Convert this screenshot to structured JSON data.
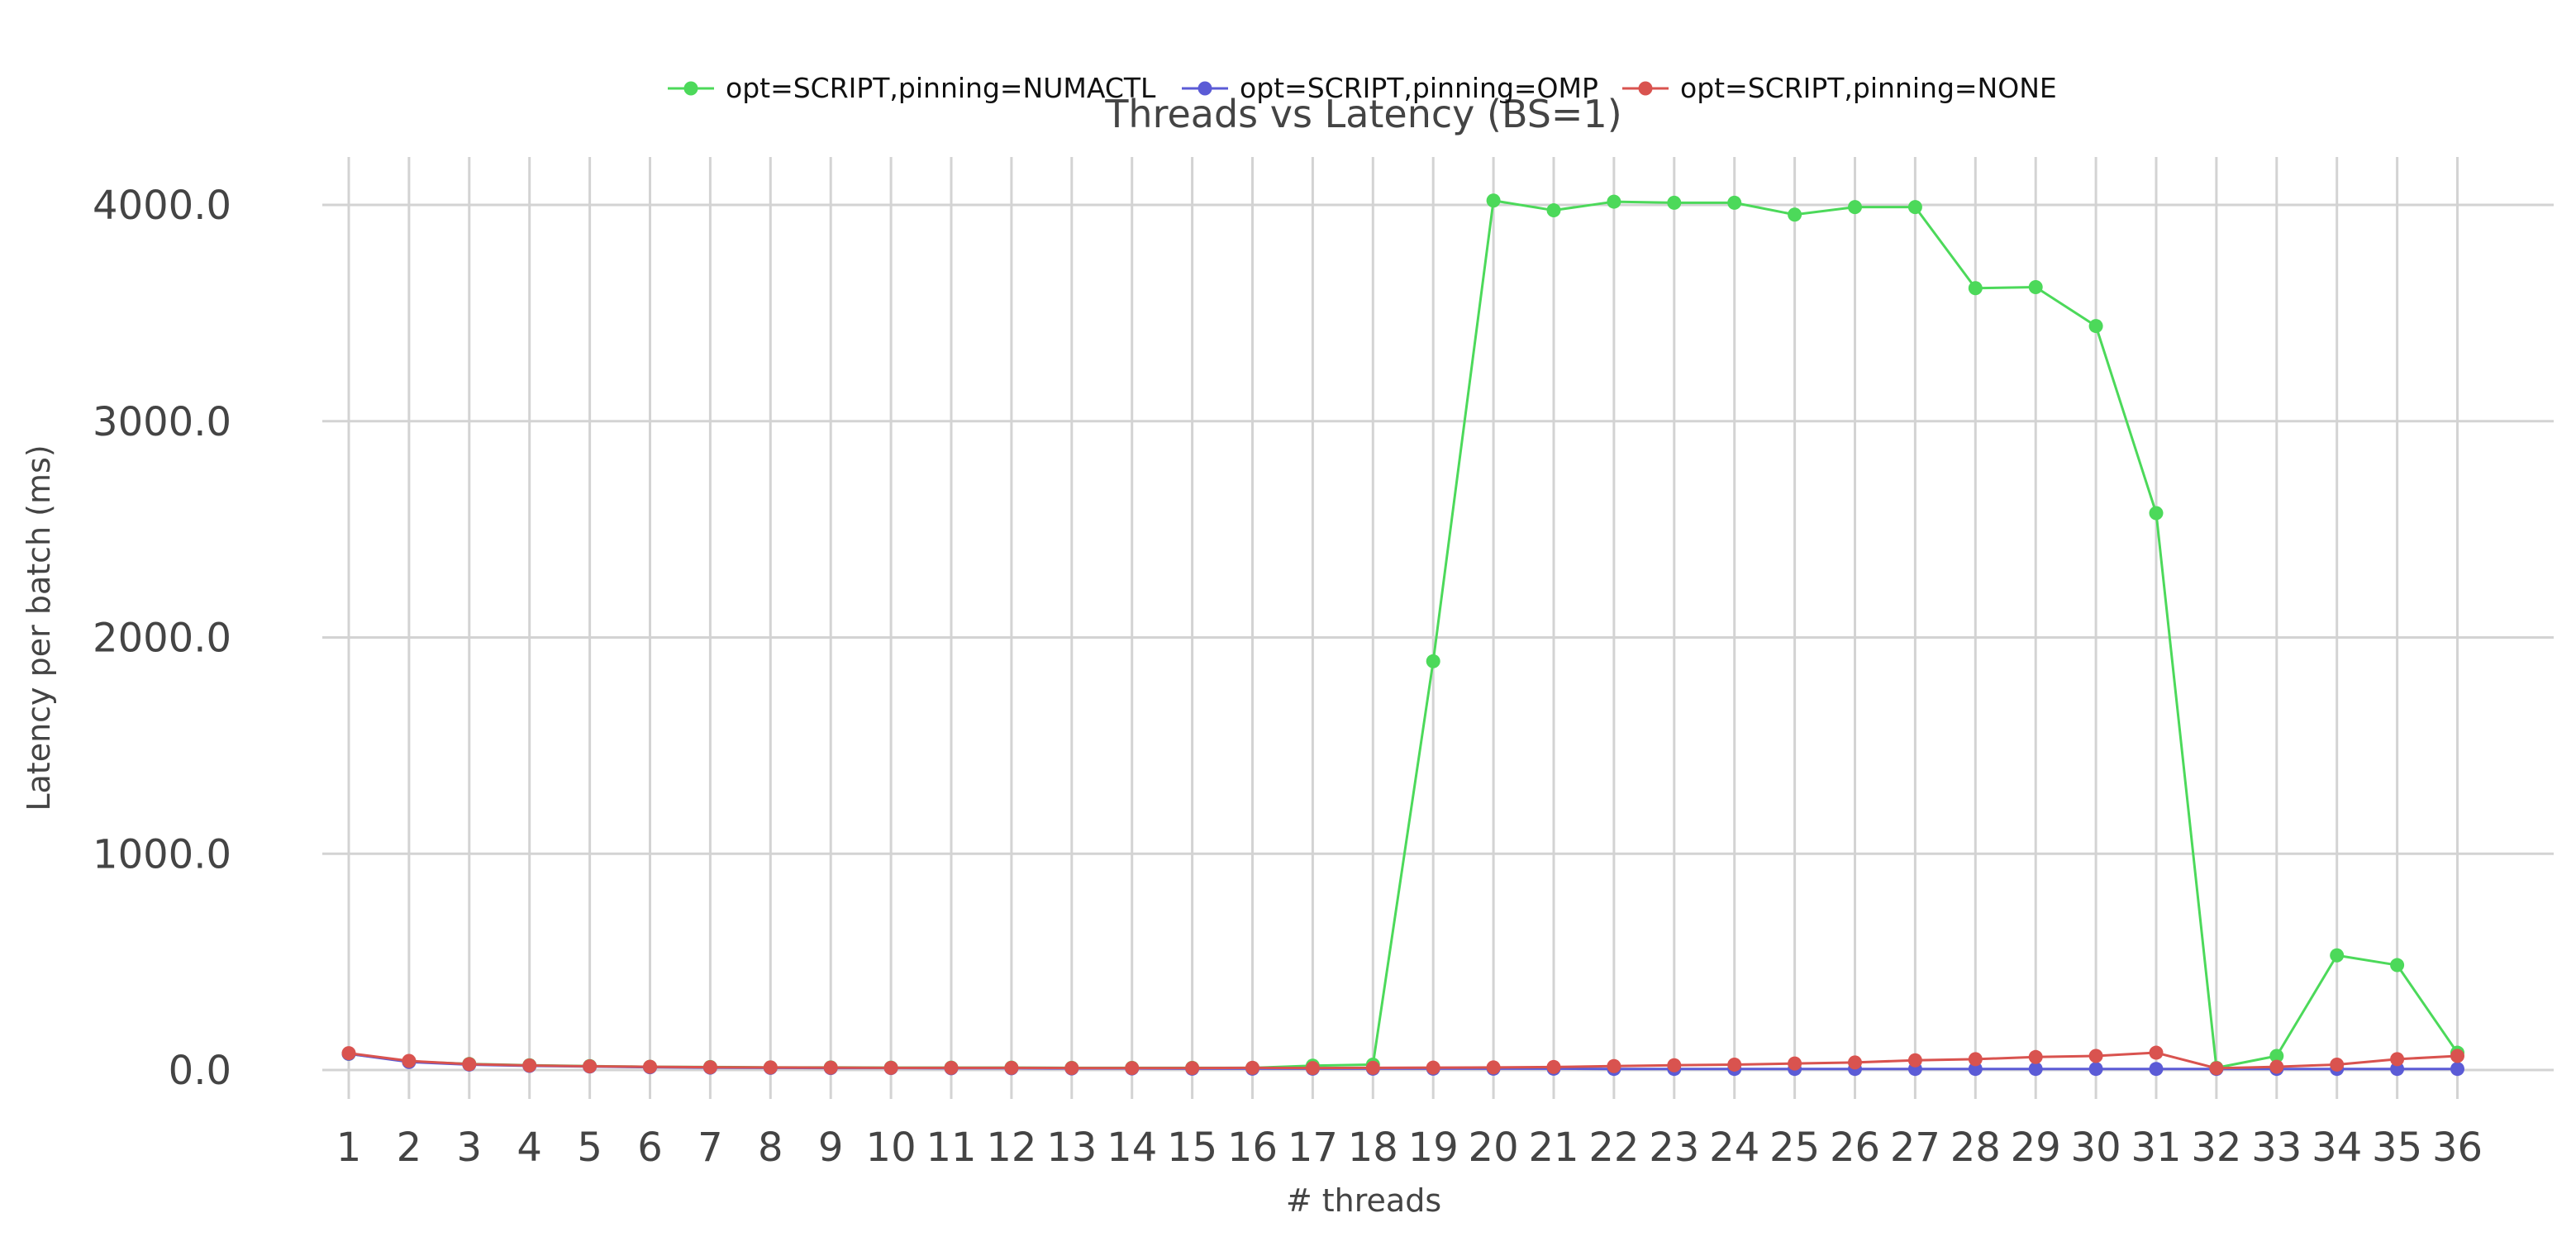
{
  "chart_data": {
    "type": "line",
    "title": "Threads vs Latency (BS=1)",
    "xlabel": "# threads",
    "ylabel": "Latency per batch (ms)",
    "x": [
      1,
      2,
      3,
      4,
      5,
      6,
      7,
      8,
      9,
      10,
      11,
      12,
      13,
      14,
      15,
      16,
      17,
      18,
      19,
      20,
      21,
      22,
      23,
      24,
      25,
      26,
      27,
      28,
      29,
      30,
      31,
      32,
      33,
      34,
      35,
      36
    ],
    "y_ticks": [
      "0.0",
      "1000.0",
      "2000.0",
      "3000.0",
      "4000.0"
    ],
    "ylim": [
      -70,
      4230
    ],
    "grid": true,
    "legend_position": "top-center",
    "series": [
      {
        "name": "opt=SCRIPT,pinning=NUMACTL",
        "color": "#4cd95a",
        "values": [
          75,
          40,
          28,
          22,
          18,
          15,
          14,
          12,
          12,
          11,
          11,
          11,
          10,
          10,
          10,
          10,
          20,
          25,
          1890,
          4020,
          3975,
          4015,
          4010,
          4010,
          3955,
          3990,
          3990,
          3615,
          3620,
          3440,
          2575,
          10,
          65,
          530,
          485,
          80
        ]
      },
      {
        "name": "opt=SCRIPT,pinning=OMP",
        "color": "#5b5bd6",
        "values": [
          75,
          37,
          25,
          19,
          16,
          13,
          11,
          10,
          9,
          9,
          8,
          8,
          7,
          7,
          6,
          6,
          6,
          6,
          6,
          6,
          6,
          5,
          5,
          5,
          5,
          5,
          5,
          5,
          5,
          5,
          5,
          5,
          5,
          5,
          5,
          5
        ]
      },
      {
        "name": "opt=SCRIPT,pinning=NONE",
        "color": "#d9534f",
        "values": [
          78,
          42,
          27,
          21,
          17,
          15,
          13,
          12,
          11,
          10,
          10,
          10,
          9,
          9,
          9,
          10,
          9,
          10,
          11,
          12,
          14,
          18,
          22,
          25,
          30,
          35,
          45,
          50,
          60,
          65,
          80,
          8,
          15,
          25,
          50,
          65
        ]
      }
    ]
  }
}
